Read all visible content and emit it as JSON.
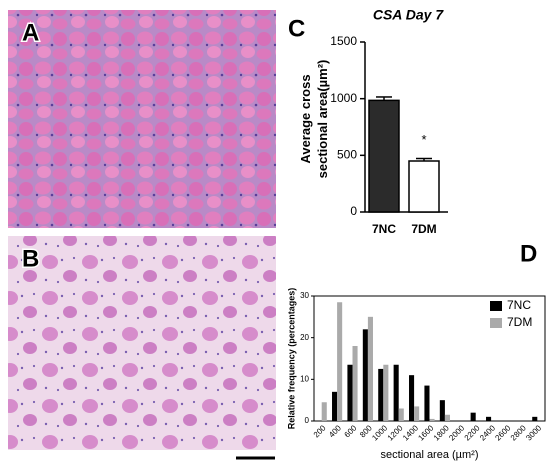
{
  "panels": {
    "a": "A",
    "b": "B"
  },
  "chart_data": [
    {
      "type": "bar",
      "panel_label": "C",
      "title": "CSA Day 7",
      "y_label": "Average cross sectional area(µm²)",
      "categories": [
        "7NC",
        "7DM"
      ],
      "values": [
        985,
        450
      ],
      "errors": [
        30,
        22
      ],
      "colors": [
        "#2b2b2b",
        "#ffffff"
      ],
      "annotation": "*",
      "ylim": [
        0,
        1500
      ],
      "yticks": [
        0,
        500,
        1000,
        1500
      ]
    },
    {
      "type": "grouped-bar",
      "panel_label": "D",
      "y_label": "Relative frequency (percentages)",
      "x_label": "sectional area (µm²)",
      "categories": [
        "200",
        "400",
        "600",
        "800",
        "1000",
        "1200",
        "1400",
        "1600",
        "1800",
        "2000",
        "2200",
        "2400",
        "2600",
        "2800",
        "3000"
      ],
      "series": [
        {
          "name": "7NC",
          "color": "#000000",
          "values": [
            0,
            7,
            13.5,
            22,
            12.5,
            13.5,
            11,
            8.5,
            5,
            0,
            2,
            1,
            0,
            0,
            1
          ]
        },
        {
          "name": "7DM",
          "color": "#aaaaaa",
          "values": [
            4.5,
            28.5,
            18,
            25,
            13.5,
            3,
            3.5,
            0.5,
            1.5,
            0,
            0,
            0,
            0,
            0,
            0
          ]
        }
      ],
      "ylim": [
        0,
        30
      ],
      "yticks": [
        0,
        10,
        20,
        30
      ],
      "legend": "top-right"
    }
  ]
}
